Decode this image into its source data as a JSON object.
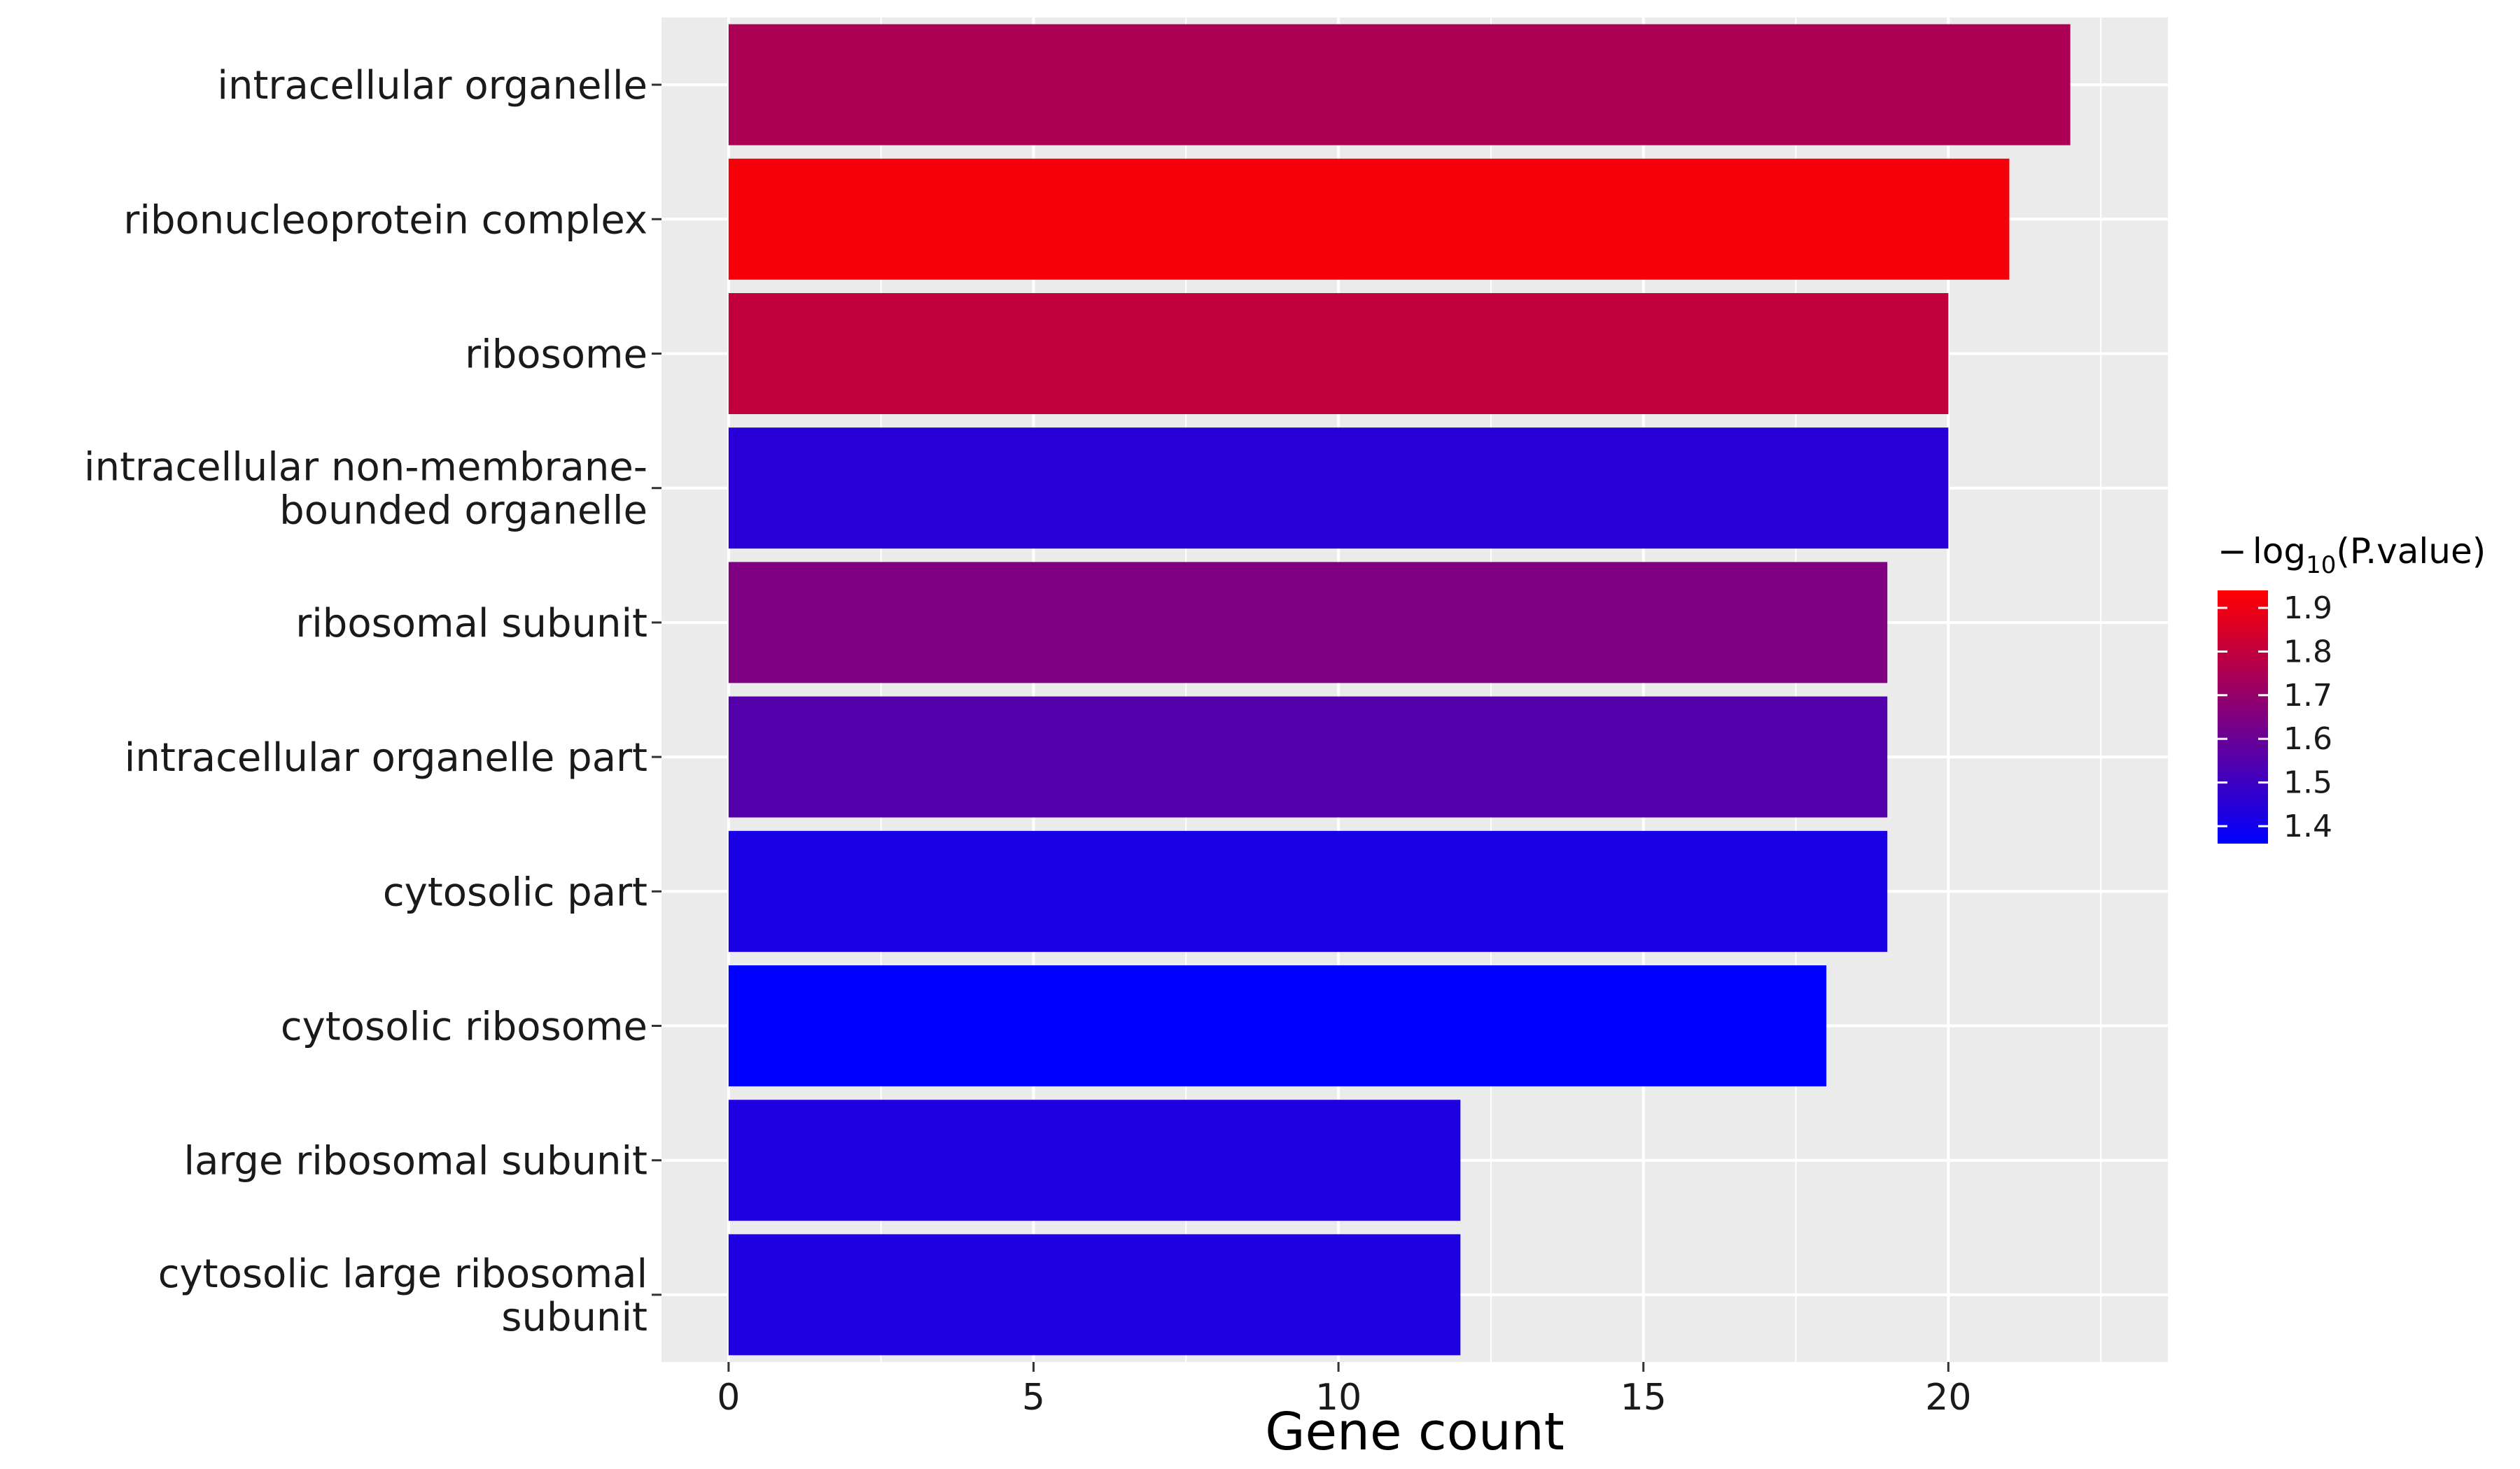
{
  "chart_data": {
    "type": "bar",
    "orientation": "horizontal",
    "categories": [
      [
        "intracellular organelle"
      ],
      [
        "ribonucleoprotein complex"
      ],
      [
        "ribosome"
      ],
      [
        "intracellular non-membrane-",
        "bounded organelle"
      ],
      [
        "ribosomal subunit"
      ],
      [
        "intracellular organelle part"
      ],
      [
        "cytosolic part"
      ],
      [
        "cytosolic ribosome"
      ],
      [
        "large ribosomal subunit"
      ],
      [
        "cytosolic large ribosomal",
        "subunit"
      ]
    ],
    "values": [
      22,
      21,
      20,
      20,
      19,
      19,
      19,
      18,
      12,
      12
    ],
    "neg_log10_pvalue": [
      1.75,
      1.92,
      1.8,
      1.45,
      1.65,
      1.55,
      1.42,
      1.36,
      1.43,
      1.43
    ],
    "xlabel": "Gene count",
    "xlim": [
      -1.1,
      23.6
    ],
    "xticks": [
      0,
      5,
      10,
      15,
      20
    ],
    "grid": true,
    "legend": {
      "title_prefix": "−",
      "title_log": "log",
      "title_base": "10",
      "title_arg": "(P.value)",
      "placement": "right",
      "ticks": [
        1.9,
        1.8,
        1.7,
        1.6,
        1.5,
        1.4
      ],
      "tick_labels": [
        "1.9",
        "1.8",
        "1.7",
        "1.6",
        "1.5",
        "1.4"
      ],
      "range": [
        1.36,
        1.94
      ],
      "low_color": "#0000FF",
      "high_color": "#FF0000"
    },
    "panel_background": "#EBEBEB",
    "grid_color": "#FFFFFF"
  }
}
